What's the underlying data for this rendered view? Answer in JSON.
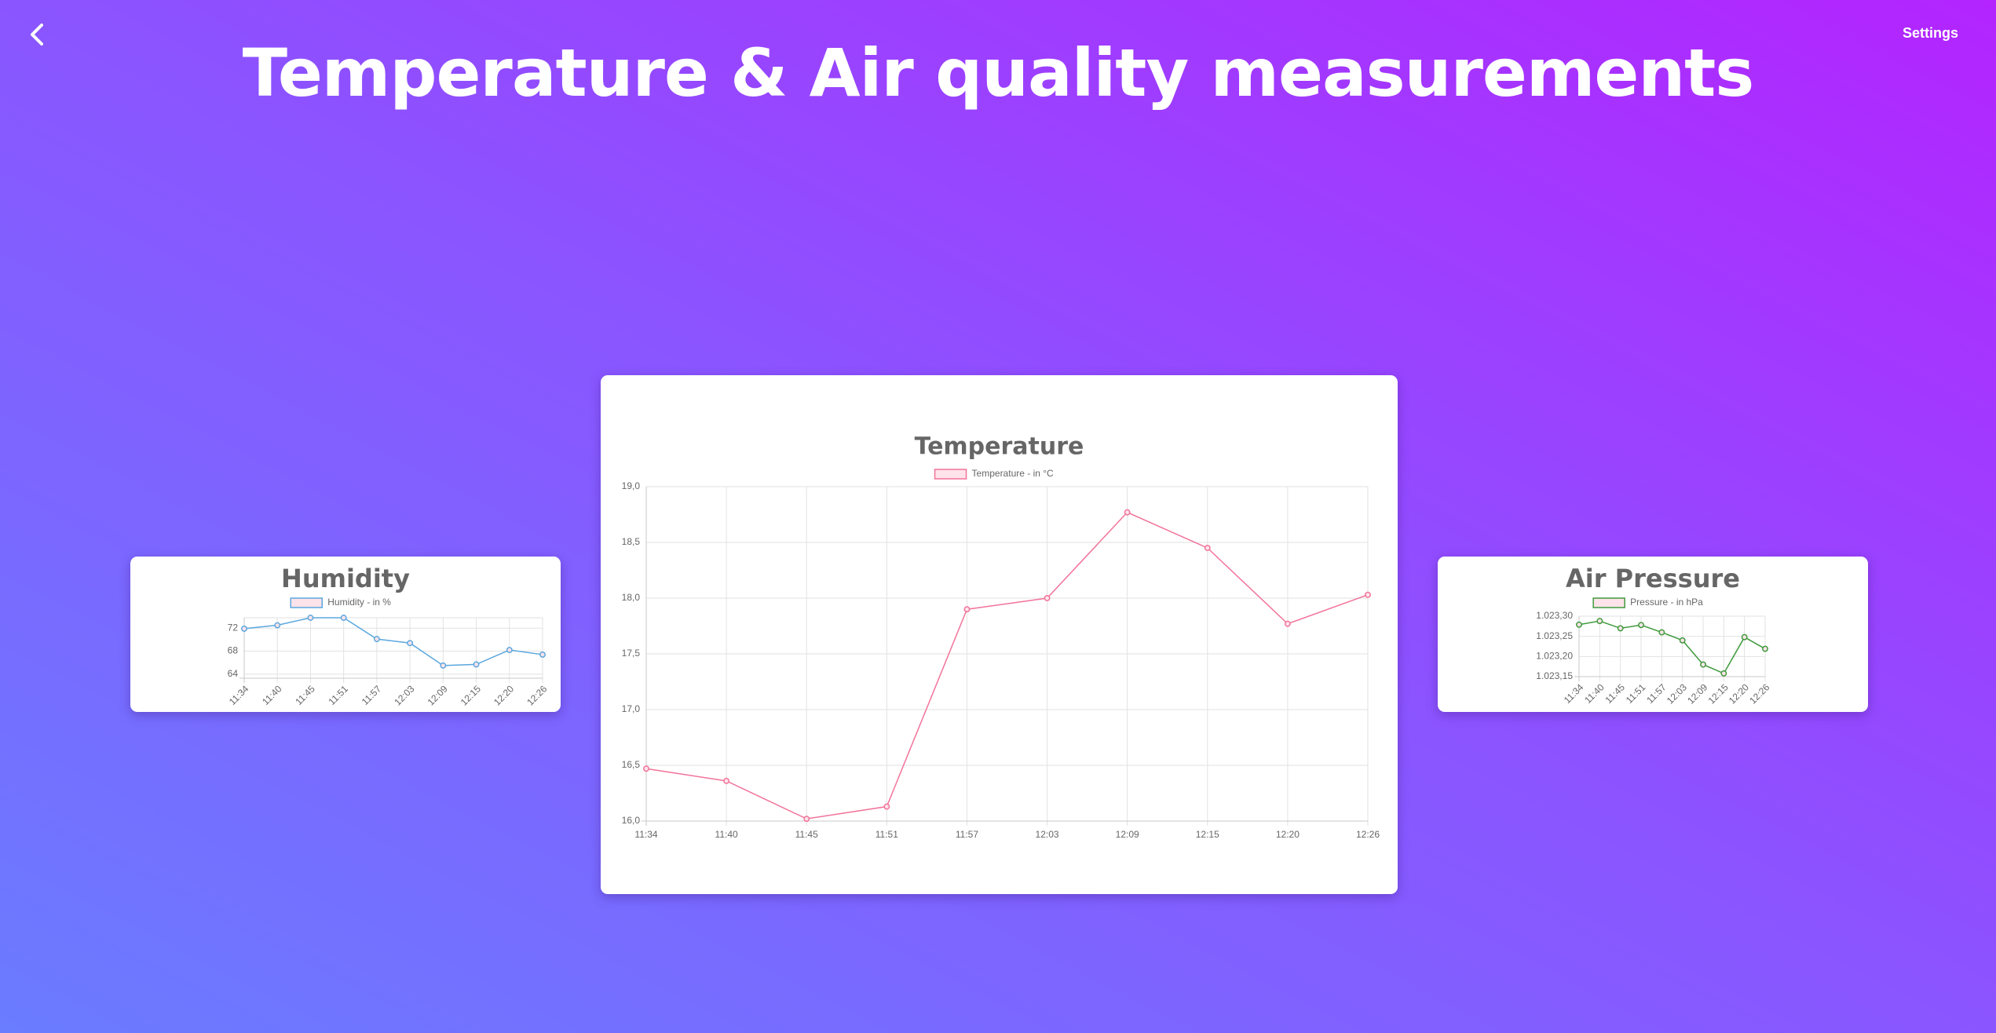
{
  "header": {
    "title": "Temperature & Air quality measurements",
    "settings_label": "Settings",
    "back_icon": "chevron-left-icon"
  },
  "chart_data": [
    {
      "id": "humidity",
      "type": "line",
      "title": "Humidity",
      "legend": "Humidity - in %",
      "color": "#5aa7de",
      "fill": "#ffe3ea",
      "categories": [
        "11:34",
        "11:40",
        "11:45",
        "11:51",
        "11:57",
        "12:03",
        "12:09",
        "12:15",
        "12:20",
        "12:26"
      ],
      "values": [
        71.9,
        72.5,
        73.8,
        73.8,
        70.1,
        69.4,
        65.5,
        65.7,
        68.2,
        67.4
      ],
      "ylim": [
        63.3,
        73.8
      ],
      "yticks": [
        "64",
        "68",
        "72"
      ],
      "ytick_values": [
        64,
        68,
        72
      ],
      "grid": true,
      "legend_position": "top"
    },
    {
      "id": "temperature",
      "type": "line",
      "title": "Temperature",
      "legend": "Temperature - in °C",
      "color": "#f2739a",
      "fill": "#ffe3ea",
      "categories": [
        "11:34",
        "11:40",
        "11:45",
        "11:51",
        "11:57",
        "12:03",
        "12:09",
        "12:15",
        "12:20",
        "12:26"
      ],
      "values": [
        16.47,
        16.36,
        16.02,
        16.13,
        17.9,
        18.0,
        18.77,
        18.45,
        17.77,
        18.03
      ],
      "ylim": [
        16.0,
        19.0
      ],
      "yticks": [
        "16,0",
        "16,5",
        "17,0",
        "17,5",
        "18,0",
        "18,5",
        "19,0"
      ],
      "ytick_values": [
        16.0,
        16.5,
        17.0,
        17.5,
        18.0,
        18.5,
        19.0
      ],
      "grid": true,
      "legend_position": "top"
    },
    {
      "id": "pressure",
      "type": "line",
      "title": "Air Pressure",
      "legend": "Pressure - in hPa",
      "color": "#3f9a3c",
      "fill": "#ffe3ea",
      "categories": [
        "11:34",
        "11:40",
        "11:45",
        "11:51",
        "11:57",
        "12:03",
        "12:09",
        "12:15",
        "12:20",
        "12:26"
      ],
      "values": [
        1023.279,
        1023.288,
        1023.27,
        1023.278,
        1023.26,
        1023.24,
        1023.18,
        1023.158,
        1023.248,
        1023.219
      ],
      "ylim": [
        1023.15,
        1023.3
      ],
      "yticks": [
        "1.023,15",
        "1.023,20",
        "1.023,25",
        "1.023,30"
      ],
      "ytick_values": [
        1023.15,
        1023.2,
        1023.25,
        1023.3
      ],
      "grid": true,
      "legend_position": "top"
    }
  ]
}
